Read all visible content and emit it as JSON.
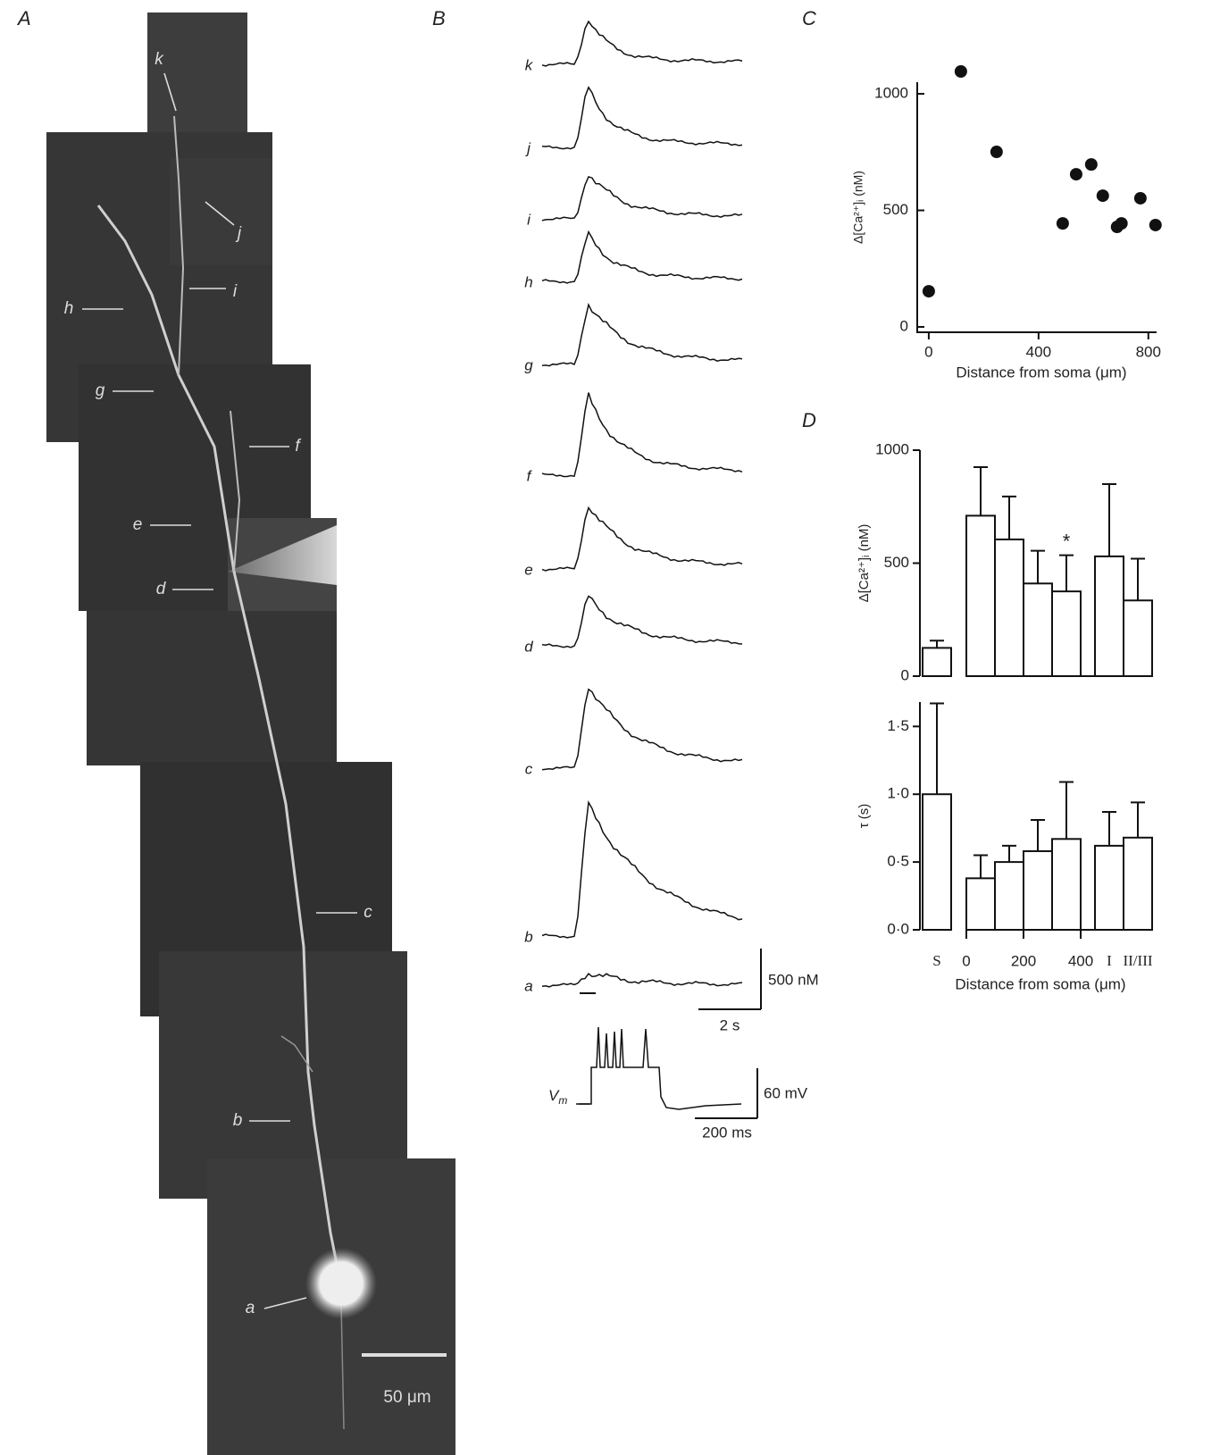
{
  "panel_labels": [
    "A",
    "B",
    "C",
    "D"
  ],
  "image_labels": [
    "k",
    "j",
    "i",
    "h",
    "g",
    "f",
    "e",
    "d",
    "c",
    "b",
    "a"
  ],
  "image_scale_bar": "50 μm",
  "trace_labels": [
    "k",
    "j",
    "i",
    "h",
    "g",
    "f",
    "e",
    "d",
    "c",
    "b",
    "a"
  ],
  "trace_scale": {
    "amplitude": "500 nM",
    "time": "2 s"
  },
  "voltage": {
    "label": "V",
    "subscript": "m"
  },
  "voltage_scale": {
    "amplitude": "60 mV",
    "time": "200 ms"
  },
  "chart_data": [
    {
      "type": "scatter",
      "ylabel": "Δ[Ca²⁺]ᵢ (nM)",
      "xlabel": "Distance from soma (μm)",
      "x": [
        0,
        117,
        247,
        488,
        537,
        592,
        634,
        686,
        702,
        771,
        826
      ],
      "y": [
        153,
        1096,
        751,
        444,
        655,
        697,
        563,
        429,
        444,
        552,
        437
      ],
      "xlim": [
        -42,
        830
      ],
      "ylim": [
        -23,
        1050
      ],
      "xticks": [
        0,
        400,
        800
      ],
      "yticks": [
        0,
        500,
        1000
      ],
      "color": "#111111"
    },
    {
      "type": "bar",
      "ylabel": "Δ[Ca²⁺]ᵢ (nM)",
      "categories": [
        "S",
        null,
        null,
        null,
        null,
        "I",
        "II/III"
      ],
      "values": [
        125,
        710,
        605,
        410,
        375,
        530,
        335
      ],
      "errors": [
        32,
        215,
        190,
        145,
        160,
        320,
        185
      ],
      "ylim": [
        0,
        1000
      ],
      "yticks": [
        0,
        500,
        1000
      ],
      "annotations": [
        {
          "text": "*",
          "category": 4
        }
      ]
    },
    {
      "type": "bar",
      "ylabel": "τ (s)",
      "xlabel": "Distance from soma (μm)",
      "categories": [
        "S",
        null,
        null,
        null,
        null,
        "I",
        "II/III"
      ],
      "values": [
        1.0,
        0.38,
        0.5,
        0.58,
        0.67,
        0.62,
        0.68
      ],
      "errors": [
        0.67,
        0.17,
        0.12,
        0.23,
        0.42,
        0.25,
        0.26
      ],
      "ylim": [
        0,
        1.68
      ],
      "yticks": [
        {
          "value": 0,
          "label": "0·0"
        },
        {
          "value": 0.5,
          "label": "0·5"
        },
        {
          "value": 1,
          "label": "1·0"
        },
        {
          "value": 1.5,
          "label": "1·5"
        }
      ],
      "distance_ticks": [
        0,
        200,
        400
      ]
    }
  ]
}
